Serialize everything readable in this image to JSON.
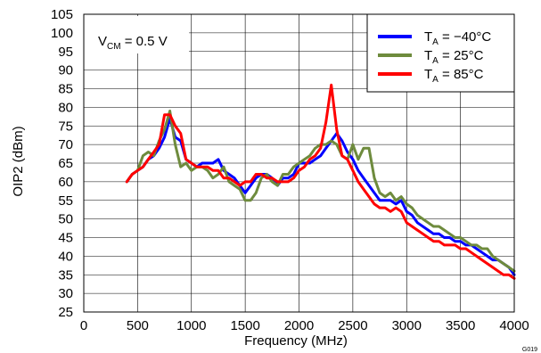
{
  "chart_data": {
    "type": "line",
    "xlabel": "Frequency (MHz)",
    "ylabel": "OIP2 (dBm)",
    "xlim": [
      0,
      4000
    ],
    "ylim": [
      25,
      105
    ],
    "xticks": [
      0,
      500,
      1000,
      1500,
      2000,
      2500,
      3000,
      3500,
      4000
    ],
    "yticks": [
      25,
      30,
      35,
      40,
      45,
      50,
      55,
      60,
      65,
      70,
      75,
      80,
      85,
      90,
      95,
      100,
      105
    ],
    "grid": true,
    "legend_position": "top-right",
    "annotation": {
      "prefix": "V",
      "sub": "CM",
      "suffix": " = 0.5 V"
    },
    "figure_id": "G019",
    "series": [
      {
        "name_main": "T",
        "name_sub": "A",
        "name_rest": " = −40°C",
        "color": "#0000ff",
        "x": [
          400,
          450,
          500,
          550,
          600,
          650,
          700,
          750,
          800,
          850,
          900,
          950,
          1000,
          1050,
          1100,
          1150,
          1200,
          1250,
          1300,
          1350,
          1400,
          1450,
          1500,
          1550,
          1600,
          1650,
          1700,
          1750,
          1800,
          1850,
          1900,
          1950,
          2000,
          2050,
          2100,
          2150,
          2200,
          2250,
          2300,
          2350,
          2400,
          2450,
          2500,
          2550,
          2600,
          2650,
          2700,
          2750,
          2800,
          2850,
          2900,
          2950,
          3000,
          3050,
          3100,
          3150,
          3200,
          3250,
          3300,
          3350,
          3400,
          3450,
          3500,
          3550,
          3600,
          3650,
          3700,
          3750,
          3800,
          3850,
          3900,
          3950,
          4000
        ],
        "y": [
          60,
          62,
          63,
          64,
          66,
          67,
          69,
          72,
          77,
          72,
          71,
          66,
          65,
          64,
          65,
          65,
          65,
          66,
          63,
          62,
          61,
          59,
          57,
          59,
          61,
          62,
          62,
          61,
          59,
          61,
          61,
          62,
          65,
          65,
          65,
          66,
          67,
          69,
          71,
          73,
          71,
          68,
          66,
          63,
          61,
          59,
          57,
          55,
          55,
          55,
          54,
          55,
          52,
          51,
          49,
          48,
          47,
          46,
          46,
          45,
          45,
          44,
          44,
          43,
          43,
          42,
          41,
          40,
          39,
          39,
          38,
          37,
          35
        ]
      },
      {
        "name_main": "T",
        "name_sub": "A",
        "name_rest": " = 25°C",
        "color": "#6e8b3d",
        "x": [
          400,
          450,
          500,
          550,
          600,
          650,
          700,
          750,
          800,
          850,
          900,
          950,
          1000,
          1050,
          1100,
          1150,
          1200,
          1250,
          1300,
          1350,
          1400,
          1450,
          1500,
          1550,
          1600,
          1650,
          1700,
          1750,
          1800,
          1850,
          1900,
          1950,
          2000,
          2050,
          2100,
          2150,
          2200,
          2250,
          2300,
          2350,
          2400,
          2450,
          2500,
          2550,
          2600,
          2650,
          2700,
          2750,
          2800,
          2850,
          2900,
          2950,
          3000,
          3050,
          3100,
          3150,
          3200,
          3250,
          3300,
          3350,
          3400,
          3450,
          3500,
          3550,
          3600,
          3650,
          3700,
          3750,
          3800,
          3850,
          3900,
          3950,
          4000
        ],
        "y": [
          60,
          62,
          63,
          67,
          68,
          67,
          71,
          74,
          79,
          70,
          64,
          65,
          63,
          64,
          64,
          63,
          61,
          62,
          64,
          60,
          59,
          58,
          55,
          55,
          57,
          61,
          62,
          60,
          59,
          62,
          62,
          64,
          65,
          66,
          67,
          69,
          70,
          70,
          71,
          70,
          67,
          66,
          70,
          66,
          69,
          69,
          61,
          57,
          56,
          57,
          55,
          56,
          54,
          53,
          51,
          50,
          49,
          48,
          48,
          47,
          46,
          45,
          45,
          44,
          43,
          43,
          42,
          42,
          40,
          39,
          38,
          37,
          36
        ]
      },
      {
        "name_main": "T",
        "name_sub": "A",
        "name_rest": " = 85°C",
        "color": "#ff0000",
        "x": [
          400,
          450,
          500,
          550,
          600,
          650,
          700,
          750,
          800,
          850,
          900,
          950,
          1000,
          1050,
          1100,
          1150,
          1200,
          1250,
          1300,
          1350,
          1400,
          1450,
          1500,
          1550,
          1600,
          1650,
          1700,
          1750,
          1800,
          1850,
          1900,
          1950,
          2000,
          2050,
          2100,
          2150,
          2200,
          2250,
          2300,
          2350,
          2400,
          2450,
          2500,
          2550,
          2600,
          2650,
          2700,
          2750,
          2800,
          2850,
          2900,
          2950,
          3000,
          3050,
          3100,
          3150,
          3200,
          3250,
          3300,
          3350,
          3400,
          3450,
          3500,
          3550,
          3600,
          3650,
          3700,
          3750,
          3800,
          3850,
          3900,
          3950,
          4000
        ],
        "y": [
          60,
          62,
          63,
          64,
          66,
          68,
          70,
          78,
          78,
          75,
          73,
          66,
          65,
          64,
          64,
          64,
          63,
          63,
          61,
          61,
          60,
          59,
          60,
          60,
          62,
          62,
          61,
          61,
          60,
          60,
          60,
          61,
          63,
          64,
          66,
          67,
          69,
          76,
          86,
          74,
          67,
          66,
          63,
          60,
          58,
          56,
          54,
          53,
          53,
          52,
          53,
          52,
          49,
          48,
          47,
          46,
          45,
          44,
          44,
          43,
          43,
          43,
          42,
          42,
          41,
          40,
          39,
          38,
          37,
          36,
          35,
          35,
          34
        ]
      }
    ]
  }
}
